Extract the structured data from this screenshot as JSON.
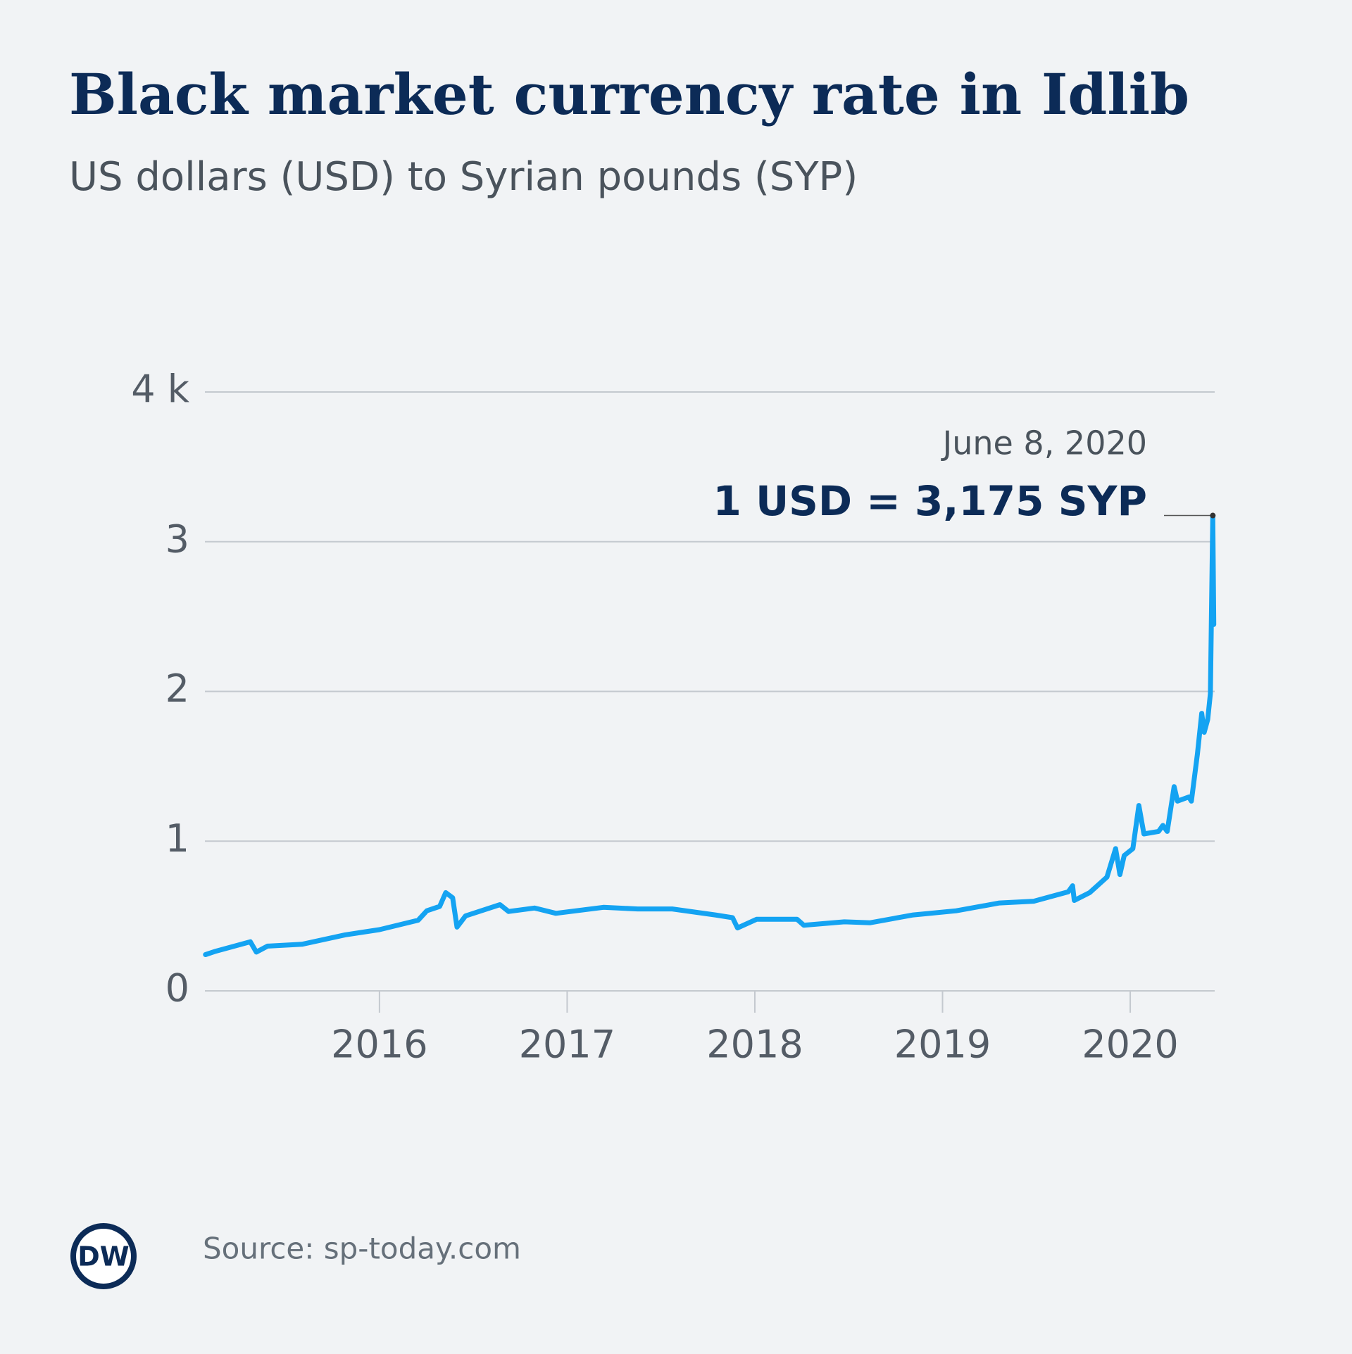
{
  "chart_data": {
    "type": "line",
    "title": "Black market currency rate in Idlib",
    "subtitle": "US dollars (USD) to Syrian pounds (SYP)",
    "x": [
      2015.073,
      2015.128,
      2015.312,
      2015.344,
      2015.404,
      2015.587,
      2015.817,
      2016.0,
      2016.206,
      2016.252,
      2016.321,
      2016.353,
      2016.39,
      2016.413,
      2016.459,
      2016.642,
      2016.688,
      2016.826,
      2016.94,
      2017.193,
      2017.376,
      2017.56,
      2017.789,
      2017.881,
      2017.908,
      2018.009,
      2018.225,
      2018.261,
      2018.477,
      2018.615,
      2018.844,
      2019.073,
      2019.303,
      2019.486,
      2019.67,
      2019.693,
      2019.702,
      2019.784,
      2019.876,
      2019.922,
      2019.945,
      2019.968,
      2020.014,
      2020.046,
      2020.073,
      2020.151,
      2020.174,
      2020.197,
      2020.234,
      2020.252,
      2020.312,
      2020.326,
      2020.358,
      2020.381,
      2020.394,
      2020.413,
      2020.427,
      2020.44,
      2020.445
    ],
    "values": [
      242,
      265,
      328,
      259,
      299,
      311,
      374,
      409,
      472,
      535,
      564,
      656,
      622,
      426,
      501,
      576,
      530,
      553,
      518,
      558,
      547,
      547,
      507,
      489,
      420,
      478,
      478,
      438,
      461,
      455,
      507,
      535,
      587,
      599,
      662,
      702,
      604,
      656,
      760,
      950,
      777,
      904,
      950,
      1238,
      1048,
      1065,
      1105,
      1065,
      1364,
      1267,
      1295,
      1267,
      1583,
      1854,
      1727,
      1813,
      1986,
      3175,
      2447
    ],
    "color": "#14a3f2",
    "xlim": [
      2015.07,
      2020.45
    ],
    "xticks": [
      2016,
      2017,
      2018,
      2019,
      2020
    ],
    "ylim": [
      0,
      4000
    ],
    "yticks": [
      0,
      {
        "value": 1000,
        "label": "1"
      },
      {
        "value": 2000,
        "label": "2"
      },
      {
        "value": 3000,
        "label": "3"
      },
      {
        "value": 4000,
        "label": "4 k"
      }
    ],
    "grid": true,
    "annotation": {
      "date": "June 8, 2020",
      "label": "1 USD = 3,175 SYP"
    },
    "source": "Source: sp-today.com",
    "logo": "DW"
  }
}
